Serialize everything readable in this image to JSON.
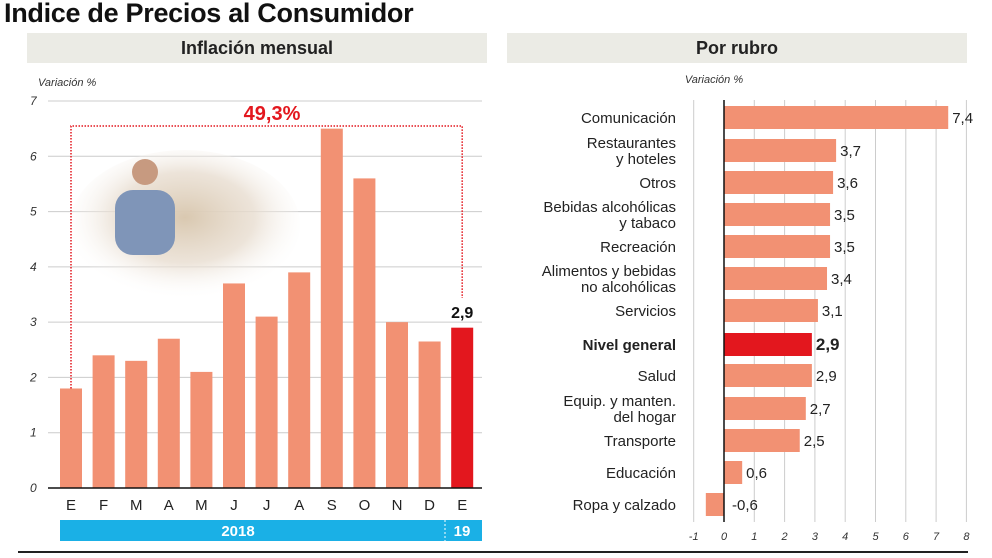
{
  "title": "Indice de Precios al Consumidor",
  "chart_data": [
    {
      "type": "bar",
      "title": "Inflación mensual",
      "ylabel": "Variación %",
      "ylim": [
        0,
        7
      ],
      "yticks": [
        0,
        1,
        2,
        3,
        4,
        5,
        6,
        7
      ],
      "grid": true,
      "categories": [
        "E",
        "F",
        "M",
        "A",
        "M",
        "J",
        "J",
        "A",
        "S",
        "O",
        "N",
        "D",
        "E"
      ],
      "values": [
        1.8,
        2.4,
        2.3,
        2.7,
        2.1,
        3.7,
        3.1,
        3.9,
        6.5,
        5.6,
        3.0,
        2.65,
        2.9
      ],
      "highlight_index": 12,
      "last_value_label": "2,9",
      "annotation": "49,3%",
      "year_labels": [
        "2018",
        "19"
      ],
      "colors": {
        "bar": "#f29173",
        "highlight": "#e3171e",
        "annotation": "#e3171e",
        "year_band": "#1ab0e6"
      }
    },
    {
      "type": "bar",
      "orientation": "horizontal",
      "title": "Por rubro",
      "xlabel": "Variación %",
      "xlim": [
        -1,
        8
      ],
      "xticks": [
        -1,
        0,
        1,
        2,
        3,
        4,
        5,
        6,
        7,
        8
      ],
      "grid": true,
      "categories": [
        [
          "Comunicación"
        ],
        [
          "Restaurantes",
          "y hoteles"
        ],
        [
          "Otros"
        ],
        [
          "Bebidas alcohólicas",
          "y tabaco"
        ],
        [
          "Recreación"
        ],
        [
          "Alimentos y bebidas",
          "no alcohólicas"
        ],
        [
          "Servicios"
        ],
        [
          "Nivel general"
        ],
        [
          "Salud"
        ],
        [
          "Equip. y manten.",
          "del hogar"
        ],
        [
          "Transporte"
        ],
        [
          "Educación"
        ],
        [
          "Ropa y calzado"
        ]
      ],
      "values": [
        7.4,
        3.7,
        3.6,
        3.5,
        3.5,
        3.4,
        3.1,
        2.9,
        2.9,
        2.7,
        2.5,
        0.6,
        -0.6
      ],
      "value_labels": [
        "7,4",
        "3,7",
        "3,6",
        "3,5",
        "3,5",
        "3,4",
        "3,1",
        "2,9",
        "2,9",
        "2,7",
        "2,5",
        "0,6",
        "-0,6"
      ],
      "highlight_index": 7,
      "colors": {
        "bar": "#f29173",
        "highlight": "#e3171e"
      }
    }
  ]
}
